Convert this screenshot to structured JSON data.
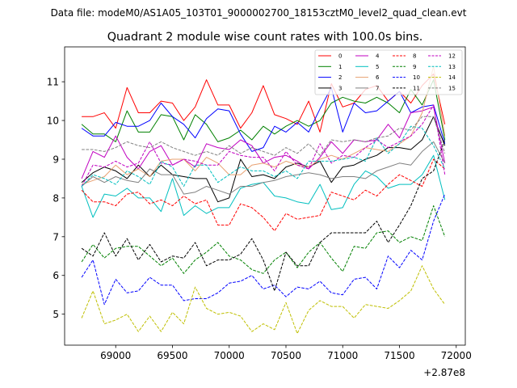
{
  "chart_data": {
    "type": "line",
    "suptitle": "Data file: modeM0/AS1A05_103T01_9000002700_18153cztM0_level2_quad_clean.evt",
    "title": "Quadrant 2 module wise count rates with 100.0s bins.",
    "xlabel": "",
    "ylabel": "",
    "x_offset_label": "+2.87e8",
    "xlim": [
      68550,
      72080
    ],
    "ylim": [
      4.2,
      11.9
    ],
    "xticks": [
      69000,
      69500,
      70000,
      70500,
      71000,
      71500,
      72000
    ],
    "yticks": [
      5,
      6,
      7,
      8,
      9,
      10,
      11
    ],
    "legend_position": "top-right",
    "x": [
      68700,
      68800,
      68900,
      69000,
      69100,
      69200,
      69300,
      69400,
      69500,
      69600,
      69700,
      69800,
      69900,
      70000,
      70100,
      70200,
      70300,
      70400,
      70500,
      70600,
      70700,
      70800,
      70900,
      71000,
      71100,
      71200,
      71300,
      71400,
      71500,
      71600,
      71700,
      71800,
      71900
    ],
    "series": [
      {
        "name": "0",
        "color": "#ff0000",
        "dash": "solid",
        "values": [
          10.1,
          10.1,
          10.2,
          9.8,
          10.85,
          10.2,
          10.2,
          10.5,
          10.45,
          10.0,
          10.35,
          11.05,
          10.4,
          10.4,
          9.8,
          10.2,
          10.9,
          10.15,
          10.05,
          9.9,
          10.5,
          9.7,
          10.95,
          10.35,
          10.45,
          10.8,
          10.9,
          10.5,
          10.75,
          10.45,
          10.9,
          11.2,
          9.9
        ]
      },
      {
        "name": "1",
        "color": "#008000",
        "dash": "solid",
        "values": [
          9.9,
          9.65,
          9.65,
          9.45,
          10.25,
          9.7,
          9.7,
          10.15,
          10.1,
          9.5,
          10.15,
          9.9,
          9.45,
          9.55,
          9.75,
          9.5,
          9.85,
          9.65,
          9.85,
          10.0,
          9.85,
          10.0,
          10.45,
          10.6,
          10.5,
          10.45,
          10.6,
          10.45,
          10.2,
          10.8,
          10.4,
          11.05,
          9.5
        ]
      },
      {
        "name": "2",
        "color": "#0000ff",
        "dash": "solid",
        "values": [
          9.8,
          9.6,
          9.6,
          9.95,
          9.85,
          9.85,
          10.0,
          10.45,
          10.1,
          9.9,
          9.55,
          10.05,
          10.3,
          10.25,
          9.65,
          9.2,
          9.3,
          9.85,
          9.7,
          9.95,
          9.7,
          10.3,
          10.85,
          9.7,
          10.45,
          10.2,
          10.25,
          10.5,
          10.75,
          10.2,
          10.35,
          10.4,
          9.4
        ]
      },
      {
        "name": "3",
        "color": "#000000",
        "dash": "solid",
        "values": [
          8.4,
          8.65,
          8.8,
          8.7,
          8.5,
          8.85,
          8.55,
          8.85,
          8.6,
          8.55,
          8.5,
          8.5,
          7.9,
          8.0,
          9.0,
          8.55,
          8.6,
          8.5,
          8.8,
          8.9,
          8.8,
          8.95,
          8.4,
          8.8,
          8.85,
          9.0,
          9.1,
          9.3,
          9.3,
          9.25,
          9.5,
          10.1,
          9.35
        ]
      },
      {
        "name": "4",
        "color": "#c000c0",
        "dash": "solid",
        "values": [
          8.5,
          9.2,
          9.05,
          9.6,
          9.05,
          8.75,
          9.2,
          9.35,
          8.85,
          9.0,
          8.8,
          9.4,
          9.3,
          9.25,
          9.5,
          9.35,
          8.9,
          9.05,
          9.1,
          8.95,
          8.75,
          9.05,
          9.45,
          9.15,
          9.5,
          9.45,
          9.5,
          9.9,
          9.55,
          10.2,
          10.25,
          10.35,
          8.9
        ]
      },
      {
        "name": "5",
        "color": "#00bfbf",
        "dash": "solid",
        "values": [
          8.3,
          7.5,
          8.1,
          8.05,
          8.25,
          8.0,
          8.0,
          7.65,
          8.5,
          7.55,
          7.8,
          7.6,
          7.75,
          7.75,
          8.25,
          8.35,
          8.4,
          8.05,
          8.0,
          7.9,
          7.85,
          8.35,
          7.7,
          7.75,
          8.35,
          8.7,
          8.55,
          8.25,
          8.35,
          8.35,
          8.6,
          9.1,
          7.95
        ]
      },
      {
        "name": "6",
        "color": "#e8a070",
        "dash": "solid",
        "values": [
          8.35,
          8.45,
          8.55,
          8.85,
          8.6,
          8.75,
          8.55,
          8.95,
          9.0,
          9.0,
          8.7,
          9.05,
          8.9,
          8.6,
          8.6,
          8.85,
          8.9,
          8.8,
          8.95,
          8.85,
          8.8,
          9.0,
          9.1,
          9.0,
          9.15,
          9.3,
          9.25,
          9.2,
          9.4,
          9.6,
          10.2,
          11.4,
          9.6
        ]
      },
      {
        "name": "7",
        "color": "#808080",
        "dash": "solid",
        "values": [
          8.3,
          8.55,
          8.4,
          8.55,
          8.45,
          8.4,
          8.75,
          8.6,
          8.6,
          8.1,
          8.15,
          8.3,
          8.2,
          8.1,
          8.3,
          8.3,
          8.4,
          8.45,
          8.55,
          8.6,
          8.65,
          8.6,
          8.5,
          8.55,
          8.55,
          8.5,
          8.7,
          8.8,
          8.9,
          8.85,
          9.2,
          9.45,
          8.9
        ]
      },
      {
        "name": "8",
        "color": "#ff0000",
        "dash": "dashed",
        "values": [
          8.2,
          7.9,
          7.9,
          7.8,
          8.1,
          8.15,
          7.85,
          7.95,
          7.8,
          8.05,
          7.85,
          7.95,
          7.3,
          7.3,
          7.85,
          7.75,
          7.5,
          7.15,
          7.6,
          7.45,
          7.5,
          7.55,
          8.15,
          8.05,
          7.95,
          8.2,
          8.05,
          8.35,
          8.6,
          8.45,
          8.3,
          9.0,
          8.75
        ]
      },
      {
        "name": "9",
        "color": "#008000",
        "dash": "dashed",
        "values": [
          6.35,
          6.8,
          6.45,
          6.7,
          6.75,
          6.75,
          6.5,
          6.25,
          6.45,
          6.05,
          6.4,
          6.6,
          6.85,
          6.5,
          6.4,
          6.15,
          6.05,
          6.4,
          6.6,
          6.2,
          6.6,
          6.85,
          6.45,
          6.1,
          6.75,
          6.7,
          7.1,
          7.15,
          6.85,
          7.0,
          6.9,
          7.8,
          7.0
        ]
      },
      {
        "name": "10",
        "color": "#0000ff",
        "dash": "dashed",
        "values": [
          5.95,
          6.4,
          5.25,
          5.9,
          5.55,
          5.6,
          5.95,
          5.75,
          5.75,
          5.35,
          5.4,
          5.4,
          5.55,
          5.8,
          5.85,
          6.0,
          5.65,
          5.75,
          5.45,
          5.7,
          5.65,
          5.85,
          5.55,
          5.5,
          5.9,
          5.95,
          5.65,
          6.5,
          6.2,
          6.65,
          6.4,
          7.4,
          8.1
        ]
      },
      {
        "name": "11",
        "color": "#000000",
        "dash": "dashed",
        "values": [
          6.7,
          6.5,
          7.1,
          6.5,
          6.95,
          6.4,
          6.8,
          6.35,
          6.5,
          6.45,
          6.85,
          6.25,
          6.4,
          6.4,
          6.55,
          6.95,
          6.4,
          5.6,
          6.6,
          6.25,
          6.25,
          6.85,
          7.1,
          7.1,
          7.1,
          7.1,
          7.4,
          6.85,
          7.3,
          7.8,
          8.5,
          8.7,
          9.5
        ]
      },
      {
        "name": "12",
        "color": "#c000c0",
        "dash": "dashed",
        "values": [
          8.3,
          8.85,
          8.8,
          8.95,
          8.8,
          8.9,
          9.45,
          8.9,
          8.85,
          9.0,
          8.95,
          8.85,
          8.85,
          9.2,
          9.1,
          9.05,
          9.05,
          8.7,
          9.2,
          8.85,
          8.75,
          9.4,
          8.9,
          9.1,
          9.05,
          9.3,
          9.5,
          9.3,
          9.45,
          9.6,
          9.9,
          10.4,
          8.6
        ]
      },
      {
        "name": "13",
        "color": "#00bfbf",
        "dash": "dashed",
        "values": [
          8.3,
          8.6,
          8.5,
          8.35,
          8.7,
          8.55,
          8.35,
          8.95,
          8.8,
          8.3,
          8.85,
          8.85,
          8.4,
          8.6,
          8.8,
          8.7,
          8.7,
          8.55,
          8.7,
          8.5,
          8.95,
          8.95,
          8.95,
          9.0,
          9.05,
          8.95,
          9.55,
          9.15,
          9.4,
          9.85,
          9.8,
          9.35,
          8.75
        ]
      },
      {
        "name": "14",
        "color": "#bfbf00",
        "dash": "dashed",
        "values": [
          4.9,
          5.6,
          4.75,
          4.85,
          5.0,
          4.55,
          4.95,
          4.55,
          5.05,
          4.75,
          5.7,
          5.15,
          5.0,
          5.05,
          4.95,
          4.55,
          4.75,
          4.6,
          5.3,
          4.5,
          5.1,
          5.35,
          5.2,
          5.2,
          4.9,
          5.25,
          5.2,
          5.15,
          5.35,
          5.6,
          6.25,
          5.65,
          5.25
        ]
      },
      {
        "name": "15",
        "color": "#808080",
        "dash": "dashed",
        "values": [
          9.25,
          9.25,
          9.2,
          9.3,
          9.45,
          9.35,
          9.3,
          9.45,
          9.3,
          9.2,
          9.1,
          9.2,
          9.1,
          9.35,
          9.15,
          9.3,
          9.2,
          9.1,
          9.3,
          9.15,
          9.4,
          9.1,
          9.5,
          9.45,
          9.5,
          9.45,
          9.55,
          9.6,
          9.8,
          9.75,
          10.1,
          10.1,
          9.15
        ]
      }
    ]
  }
}
